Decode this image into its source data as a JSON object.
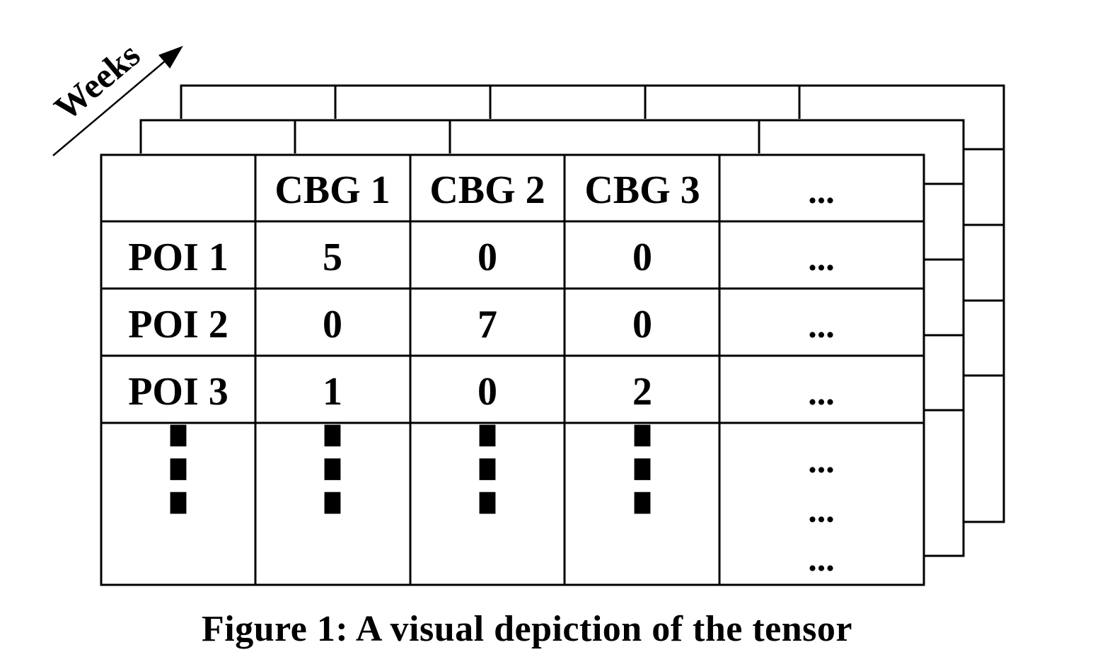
{
  "axis_label": "Weeks",
  "header": [
    "",
    "CBG 1",
    "CBG 2",
    "CBG 3",
    "..."
  ],
  "rows": [
    [
      "POI 1",
      "5",
      "0",
      "0",
      "..."
    ],
    [
      "POI 2",
      "0",
      "7",
      "0",
      "..."
    ],
    [
      "POI 3",
      "1",
      "0",
      "2",
      "..."
    ]
  ],
  "vertical_ellipsis": "⋮",
  "horizontal_ellipsis": "...",
  "caption": "Figure 1: A visual depiction of the tensor",
  "colors": {
    "line": "#000000",
    "background": "#ffffff"
  }
}
